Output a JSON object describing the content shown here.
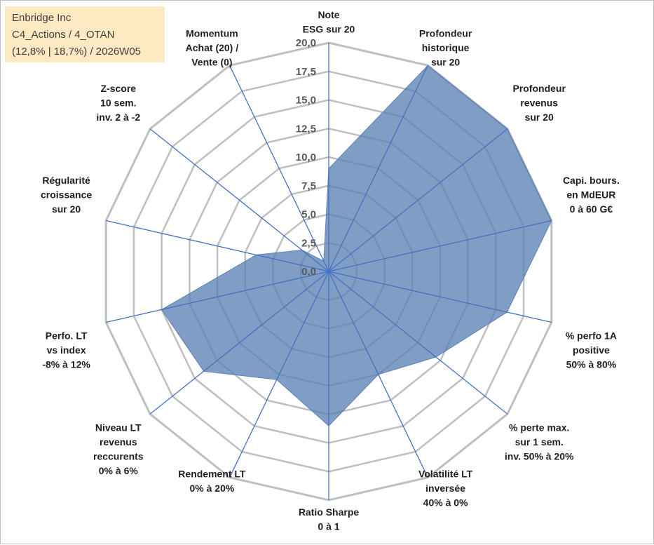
{
  "info_box": {
    "company": "Enbridge Inc",
    "category": "C4_Actions / 4_OTAN",
    "stats": "(12,8% | 18,7%) / 2026W05"
  },
  "chart_data": {
    "type": "radar",
    "title": "",
    "rlim": [
      0,
      20
    ],
    "ticks": [
      "0,0",
      "2,5",
      "5,0",
      "7,5",
      "10,0",
      "12,5",
      "15,0",
      "17,5",
      "20,0"
    ],
    "tick_values": [
      0,
      2.5,
      5,
      7.5,
      10,
      12.5,
      15,
      17.5,
      20
    ],
    "grid": true,
    "fill_color": "#5b82b5",
    "line_color": "#4472c4",
    "grid_color": "#bfbfbf",
    "axes": [
      {
        "label": [
          "Note",
          "ESG sur 20"
        ]
      },
      {
        "label": [
          "Profondeur",
          "historique",
          "sur 20"
        ]
      },
      {
        "label": [
          "Profondeur",
          "revenus",
          "sur 20"
        ]
      },
      {
        "label": [
          "Capi. bours.",
          "en MdEUR",
          "0 à 60 G€"
        ]
      },
      {
        "label": [
          "% perfo 1A",
          "positive",
          "50% à 80%"
        ]
      },
      {
        "label": [
          "% perte max.",
          "sur 1 sem.",
          "inv. 50% à 20%"
        ]
      },
      {
        "label": [
          "Volatilité LT",
          "inversée",
          "40% à 0%"
        ]
      },
      {
        "label": [
          "Ratio Sharpe",
          "0 à 1"
        ]
      },
      {
        "label": [
          "Rendement LT",
          "0% à 20%"
        ]
      },
      {
        "label": [
          "Niveau LT",
          "revenus",
          "reccurents",
          "0% à 6%"
        ]
      },
      {
        "label": [
          "Perfo. LT",
          "vs index",
          "-8% à 12%"
        ]
      },
      {
        "label": [
          "Régularité",
          "croissance",
          "sur 20"
        ]
      },
      {
        "label": [
          "Z-score",
          "10 sem.",
          "inv. 2 à -2"
        ]
      },
      {
        "label": [
          "Momentum",
          "Achat (20) /",
          "Vente (0)"
        ]
      }
    ],
    "series": [
      {
        "values": [
          9.0,
          20.0,
          20.0,
          20.0,
          16.0,
          12.0,
          10.0,
          13.5,
          10.5,
          14.0,
          15.0,
          6.5,
          3.0,
          1.0
        ]
      }
    ]
  }
}
